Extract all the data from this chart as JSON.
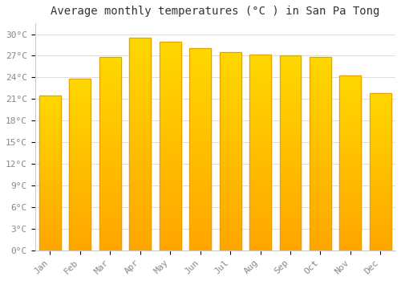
{
  "title": "Average monthly temperatures (°C ) in San Pa Tong",
  "months": [
    "Jan",
    "Feb",
    "Mar",
    "Apr",
    "May",
    "Jun",
    "Jul",
    "Aug",
    "Sep",
    "Oct",
    "Nov",
    "Dec"
  ],
  "values": [
    21.5,
    23.8,
    26.8,
    29.5,
    29.0,
    28.0,
    27.5,
    27.2,
    27.0,
    26.8,
    24.3,
    21.8
  ],
  "bar_color_top": "#FFD700",
  "bar_color_bottom": "#FFA500",
  "bar_edge_color": "#E8A000",
  "background_color": "#FFFFFF",
  "grid_color": "#DDDDDD",
  "ytick_labels": [
    "0°C",
    "3°C",
    "6°C",
    "9°C",
    "12°C",
    "15°C",
    "18°C",
    "21°C",
    "24°C",
    "27°C",
    "30°C"
  ],
  "ytick_values": [
    0,
    3,
    6,
    9,
    12,
    15,
    18,
    21,
    24,
    27,
    30
  ],
  "ylim": [
    0,
    31.5
  ],
  "title_fontsize": 10,
  "tick_fontsize": 8,
  "tick_color": "#888888",
  "spine_color": "#CCCCCC",
  "bar_width": 0.72
}
